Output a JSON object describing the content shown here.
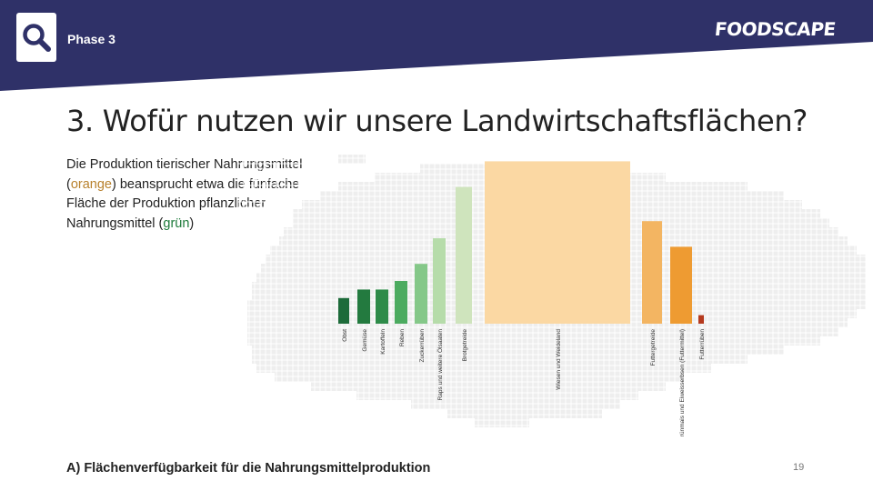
{
  "header": {
    "phase_label": "Phase 3",
    "brand": "FOODSCAPE",
    "icon": "search-icon",
    "background_color": "#2f3168"
  },
  "title": "3. Wofür nutzen wir unsere Landwirtschaftsflächen?",
  "intro": {
    "part1": "Die Produktion tierischer Nahrungsmittel (",
    "orange_word": "orange",
    "part2": ") beansprucht etwa die fünfache Fläche der Produktion pflanzlicher Nahrungsmittel (",
    "green_word": "grün",
    "part3": ")"
  },
  "chart_data": {
    "type": "bar",
    "categories": [
      "Obst",
      "Gemüse",
      "Kartoffeln",
      "Reben",
      "Zuckerrüben",
      "Raps und weitere Ölsaaten",
      "Brotgetreide",
      "Wiesen und Weideland",
      "Futtergetreide",
      "Silo- (Grünmais und Eiweisserbsen (Futtermittel)",
      "Futterrüben"
    ],
    "values": [
      3,
      4,
      4,
      5,
      7,
      10,
      16,
      19,
      12,
      9,
      1
    ],
    "colors": [
      "#1d6b3a",
      "#237a3f",
      "#2e8b49",
      "#4cab60",
      "#85c889",
      "#b6dcaa",
      "#cfe4bd",
      "#fbd8a3",
      "#f3b562",
      "#ee9b32",
      "#b53a1e"
    ],
    "group_legend": {
      "animal": "orange",
      "plant": "grün"
    }
  },
  "footer": {
    "caption": "A) Flächenverfügbarkeit für die Nahrungsmittelproduktion",
    "page_number": "19"
  }
}
